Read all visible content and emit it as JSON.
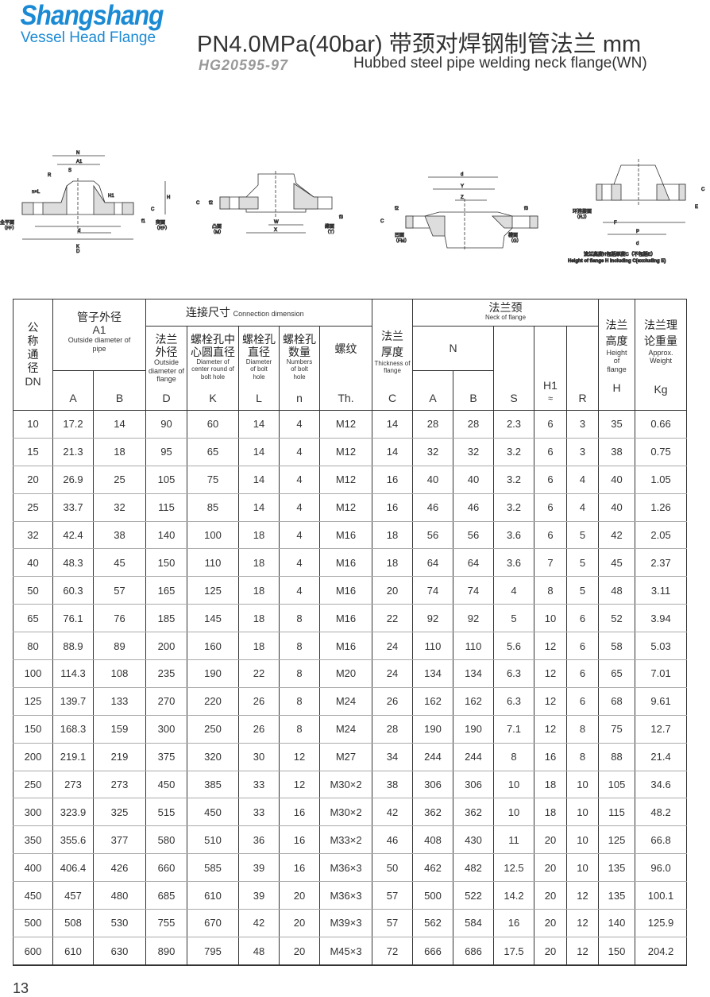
{
  "header": {
    "brand": "Shangshang",
    "brand_sub": "Vessel Head Flange",
    "title": "PN4.0MPa(40bar) 带颈对焊钢制管法兰  mm",
    "standard": "HG20595-97",
    "subtitle": "Hubbed steel pipe welding neck flange(WN)"
  },
  "diagrams": {
    "d1": {
      "N": "N",
      "A1": "A1",
      "S": "S",
      "R": "R",
      "nxL": "n×L",
      "H": "H",
      "H1": "H1",
      "C": "C",
      "f1": "f1",
      "d": "d",
      "K": "K",
      "D": "D",
      "ff": "全平面",
      "ff_en": "（FF）",
      "rf": "突面",
      "rf_en": "（RF）"
    },
    "d2": {
      "C": "C",
      "f2": "f2",
      "f3": "f3",
      "W": "W",
      "X": "X",
      "m": "凸面",
      "m_en": "（M）",
      "t": "榫面",
      "t_en": "（T）"
    },
    "d3": {
      "d": "d",
      "Y": "Y",
      "Z": "Z",
      "f2": "f2",
      "f3": "f3",
      "C": "C",
      "fm": "凹面",
      "fm_en": "（FM）",
      "g": "槽面",
      "g_en": "（G）"
    },
    "d4": {
      "C": "C",
      "E": "E",
      "F": "F",
      "P": "P",
      "d": "d",
      "rj": "环连接面",
      "rj_en": "（RJ）",
      "note_cn": "法兰高度H包括厚度C（不包括E）",
      "note_en": "Height of flange H including C(excluding E)"
    }
  },
  "table": {
    "h_dn": "公称通径",
    "h_dn_en": "DN",
    "h_pipe": "管子外径",
    "h_pipe_sym": "A1",
    "h_pipe_en": "Outside diameter of pipe",
    "h_conn": "连接尺寸",
    "h_conn_en": "Connection dimension",
    "h_D": "法兰外径",
    "h_D_en": "Outside diameter of flange",
    "h_K": "螺栓孔中心圆直径",
    "h_K_en": "Diameter of center round of bolt hole",
    "h_L": "螺栓孔直径",
    "h_L_en": "Diameter of bolt hole",
    "h_n": "螺栓孔数量",
    "h_n_en": "Numbers of bolt hole",
    "h_th": "螺纹",
    "h_C": "法兰厚度",
    "h_C_en": "Thickness of flange",
    "h_neck": "法兰颈",
    "h_neck_en": "Neck of flange",
    "h_N": "N",
    "h_H": "法兰高度",
    "h_H_en": "Height of flange",
    "h_W": "法兰理论重量",
    "h_W_en": "Approx. Weight",
    "letters": {
      "A": "A",
      "B": "B",
      "D": "D",
      "K": "K",
      "L": "L",
      "n": "n",
      "Th": "Th.",
      "C": "C",
      "NA": "A",
      "NB": "B",
      "S": "S",
      "H1": "H1",
      "H1b": "≈",
      "R": "R",
      "H": "H",
      "Kg": "Kg"
    },
    "rows": [
      [
        "10",
        "17.2",
        "14",
        "90",
        "60",
        "14",
        "4",
        "M12",
        "14",
        "28",
        "28",
        "2.3",
        "6",
        "3",
        "35",
        "0.66"
      ],
      [
        "15",
        "21.3",
        "18",
        "95",
        "65",
        "14",
        "4",
        "M12",
        "14",
        "32",
        "32",
        "3.2",
        "6",
        "3",
        "38",
        "0.75"
      ],
      [
        "20",
        "26.9",
        "25",
        "105",
        "75",
        "14",
        "4",
        "M12",
        "16",
        "40",
        "40",
        "3.2",
        "6",
        "4",
        "40",
        "1.05"
      ],
      [
        "25",
        "33.7",
        "32",
        "115",
        "85",
        "14",
        "4",
        "M12",
        "16",
        "46",
        "46",
        "3.2",
        "6",
        "4",
        "40",
        "1.26"
      ],
      [
        "32",
        "42.4",
        "38",
        "140",
        "100",
        "18",
        "4",
        "M16",
        "18",
        "56",
        "56",
        "3.6",
        "6",
        "5",
        "42",
        "2.05"
      ],
      [
        "40",
        "48.3",
        "45",
        "150",
        "110",
        "18",
        "4",
        "M16",
        "18",
        "64",
        "64",
        "3.6",
        "7",
        "5",
        "45",
        "2.37"
      ],
      [
        "50",
        "60.3",
        "57",
        "165",
        "125",
        "18",
        "4",
        "M16",
        "20",
        "74",
        "74",
        "4",
        "8",
        "5",
        "48",
        "3.11"
      ],
      [
        "65",
        "76.1",
        "76",
        "185",
        "145",
        "18",
        "8",
        "M16",
        "22",
        "92",
        "92",
        "5",
        "10",
        "6",
        "52",
        "3.94"
      ],
      [
        "80",
        "88.9",
        "89",
        "200",
        "160",
        "18",
        "8",
        "M16",
        "24",
        "110",
        "110",
        "5.6",
        "12",
        "6",
        "58",
        "5.03"
      ],
      [
        "100",
        "114.3",
        "108",
        "235",
        "190",
        "22",
        "8",
        "M20",
        "24",
        "134",
        "134",
        "6.3",
        "12",
        "6",
        "65",
        "7.01"
      ],
      [
        "125",
        "139.7",
        "133",
        "270",
        "220",
        "26",
        "8",
        "M24",
        "26",
        "162",
        "162",
        "6.3",
        "12",
        "6",
        "68",
        "9.61"
      ],
      [
        "150",
        "168.3",
        "159",
        "300",
        "250",
        "26",
        "8",
        "M24",
        "28",
        "190",
        "190",
        "7.1",
        "12",
        "8",
        "75",
        "12.7"
      ],
      [
        "200",
        "219.1",
        "219",
        "375",
        "320",
        "30",
        "12",
        "M27",
        "34",
        "244",
        "244",
        "8",
        "16",
        "8",
        "88",
        "21.4"
      ],
      [
        "250",
        "273",
        "273",
        "450",
        "385",
        "33",
        "12",
        "M30×2",
        "38",
        "306",
        "306",
        "10",
        "18",
        "10",
        "105",
        "34.6"
      ],
      [
        "300",
        "323.9",
        "325",
        "515",
        "450",
        "33",
        "16",
        "M30×2",
        "42",
        "362",
        "362",
        "10",
        "18",
        "10",
        "115",
        "48.2"
      ],
      [
        "350",
        "355.6",
        "377",
        "580",
        "510",
        "36",
        "16",
        "M33×2",
        "46",
        "408",
        "430",
        "11",
        "20",
        "10",
        "125",
        "66.8"
      ],
      [
        "400",
        "406.4",
        "426",
        "660",
        "585",
        "39",
        "16",
        "M36×3",
        "50",
        "462",
        "482",
        "12.5",
        "20",
        "10",
        "135",
        "96.0"
      ],
      [
        "450",
        "457",
        "480",
        "685",
        "610",
        "39",
        "20",
        "M36×3",
        "57",
        "500",
        "522",
        "14.2",
        "20",
        "12",
        "135",
        "100.1"
      ],
      [
        "500",
        "508",
        "530",
        "755",
        "670",
        "42",
        "20",
        "M39×3",
        "57",
        "562",
        "584",
        "16",
        "20",
        "12",
        "140",
        "125.9"
      ],
      [
        "600",
        "610",
        "630",
        "890",
        "795",
        "48",
        "20",
        "M45×3",
        "72",
        "666",
        "686",
        "17.5",
        "20",
        "12",
        "150",
        "204.2"
      ]
    ]
  },
  "page_number": "13",
  "colors": {
    "brand": "#1a8ad4",
    "standard": "#999999"
  }
}
